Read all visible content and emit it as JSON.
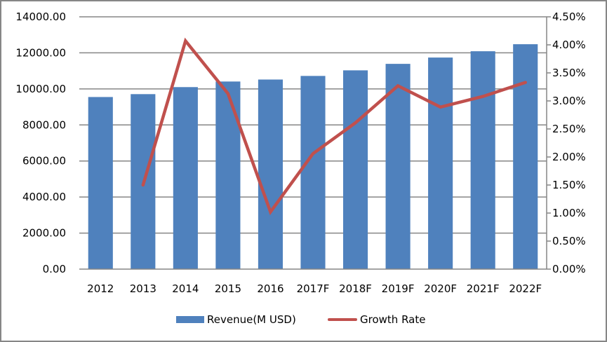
{
  "chart_data": {
    "type": "bar+line",
    "title": "",
    "categories": [
      "2012",
      "2013",
      "2014",
      "2015",
      "2016",
      "2017F",
      "2018F",
      "2019F",
      "2020F",
      "2021F",
      "2022F"
    ],
    "series": [
      {
        "name": "Revenue(M USD)",
        "type": "bar",
        "axis": "left",
        "color": "#4f81bd",
        "values": [
          9550,
          9710,
          10100,
          10410,
          10520,
          10720,
          11030,
          11390,
          11740,
          12090,
          12480
        ]
      },
      {
        "name": "Growth Rate",
        "type": "line",
        "axis": "right",
        "color": "#c0504d",
        "values": [
          null,
          1.5,
          4.07,
          3.13,
          1.02,
          2.06,
          2.61,
          3.27,
          2.89,
          3.08,
          3.33
        ]
      }
    ],
    "y_left": {
      "label": "",
      "ylim": [
        0,
        14000
      ],
      "ticks": [
        "0.00",
        "2000.00",
        "4000.00",
        "6000.00",
        "8000.00",
        "10000.00",
        "12000.00",
        "14000.00"
      ]
    },
    "y_right": {
      "label": "",
      "ylim": [
        0,
        4.5
      ],
      "unit": "%",
      "ticks": [
        "0.00%",
        "0.50%",
        "1.00%",
        "1.50%",
        "2.00%",
        "2.50%",
        "3.00%",
        "3.50%",
        "4.00%",
        "4.50%"
      ]
    },
    "xlabel": "",
    "grid": true,
    "legend": "bottom"
  }
}
